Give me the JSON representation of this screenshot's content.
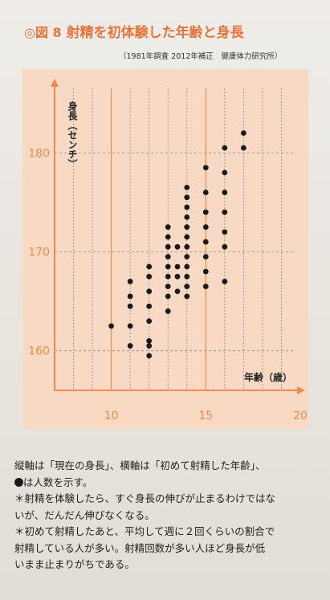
{
  "figure": {
    "number": "◎図 8",
    "title": "射精を初体験した年齢と身長",
    "source": "（1981年調査 2012年補正　健康体力研究所）"
  },
  "chart_data": {
    "type": "scatter",
    "title": "",
    "xlabel": "年齢（歳）",
    "ylabel": "身長（センチ）",
    "xlim": [
      7,
      20
    ],
    "ylim": [
      156,
      187
    ],
    "x_ticks": [
      10,
      15,
      20
    ],
    "y_ticks": [
      160,
      170,
      180
    ],
    "x_gridlines": [
      8,
      9,
      10,
      11,
      12,
      13,
      14,
      15,
      16,
      17,
      18,
      19
    ],
    "grid": true,
    "points": [
      {
        "x": 10,
        "y": 162.5
      },
      {
        "x": 11,
        "y": 160.5
      },
      {
        "x": 11,
        "y": 162.5
      },
      {
        "x": 11,
        "y": 164.5
      },
      {
        "x": 11,
        "y": 165.5
      },
      {
        "x": 11,
        "y": 167
      },
      {
        "x": 12,
        "y": 159.5
      },
      {
        "x": 12,
        "y": 160.5
      },
      {
        "x": 12,
        "y": 161
      },
      {
        "x": 12,
        "y": 163
      },
      {
        "x": 12,
        "y": 164.5
      },
      {
        "x": 12,
        "y": 166
      },
      {
        "x": 12,
        "y": 167.5
      },
      {
        "x": 12,
        "y": 168.5
      },
      {
        "x": 13,
        "y": 164
      },
      {
        "x": 13,
        "y": 165.5
      },
      {
        "x": 13,
        "y": 166.5
      },
      {
        "x": 13,
        "y": 167.5
      },
      {
        "x": 13,
        "y": 168.5
      },
      {
        "x": 13,
        "y": 169.5
      },
      {
        "x": 13,
        "y": 170.5
      },
      {
        "x": 13,
        "y": 171.5
      },
      {
        "x": 13,
        "y": 172.5
      },
      {
        "x": 13.5,
        "y": 166
      },
      {
        "x": 13.5,
        "y": 167.5
      },
      {
        "x": 13.5,
        "y": 168.5
      },
      {
        "x": 13.5,
        "y": 170.5
      },
      {
        "x": 14,
        "y": 165.5
      },
      {
        "x": 14,
        "y": 166.5
      },
      {
        "x": 14,
        "y": 167.5
      },
      {
        "x": 14,
        "y": 168.5
      },
      {
        "x": 14,
        "y": 169.5
      },
      {
        "x": 14,
        "y": 170.5
      },
      {
        "x": 14,
        "y": 171.5
      },
      {
        "x": 14,
        "y": 172.5
      },
      {
        "x": 14,
        "y": 173.5
      },
      {
        "x": 14,
        "y": 174.5
      },
      {
        "x": 14,
        "y": 175.5
      },
      {
        "x": 14,
        "y": 176.5
      },
      {
        "x": 15,
        "y": 166.5
      },
      {
        "x": 15,
        "y": 168
      },
      {
        "x": 15,
        "y": 169.5
      },
      {
        "x": 15,
        "y": 171
      },
      {
        "x": 15,
        "y": 172.5
      },
      {
        "x": 15,
        "y": 174
      },
      {
        "x": 15,
        "y": 176
      },
      {
        "x": 15,
        "y": 178.5
      },
      {
        "x": 16,
        "y": 167
      },
      {
        "x": 16,
        "y": 170.5
      },
      {
        "x": 16,
        "y": 172
      },
      {
        "x": 16,
        "y": 174
      },
      {
        "x": 16,
        "y": 176
      },
      {
        "x": 16,
        "y": 178
      },
      {
        "x": 16,
        "y": 180.5
      },
      {
        "x": 17,
        "y": 180.5
      },
      {
        "x": 17,
        "y": 182
      }
    ]
  },
  "caption": {
    "line1a": "縦軸は「現在の身長」、横軸は「初めて射精した年齢」、",
    "line1b": "は人数を示す。",
    "line2": "＊射精を体験したら、すぐ身長の伸びが止まるわけではな",
    "line3": "いが、だんだん伸びなくなる。",
    "line4": "＊初めて射精したあと、平均して週に２回くらいの割合で",
    "line5": "射精している人が多い。射精回数が多い人ほど身長が低",
    "line6": "いまま止まりがちである。"
  },
  "colors": {
    "accent": "#e8743a",
    "axis": "#f08a4b",
    "panel": "#f7d9c4",
    "grid": "#8c8c8c",
    "dot": "#1a1a1a"
  }
}
